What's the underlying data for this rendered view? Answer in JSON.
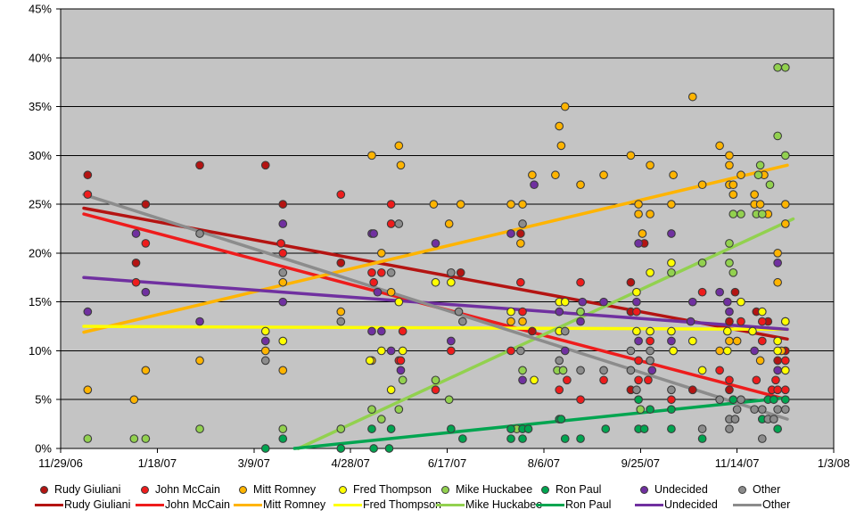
{
  "chart_data": {
    "type": "scatter",
    "title": "",
    "plot_bg": "#C4C4C4",
    "grid": "horizontal",
    "legend_position": "bottom",
    "x_axis": {
      "tick_labels": [
        "11/29/06",
        "1/18/07",
        "3/9/07",
        "4/28/07",
        "6/17/07",
        "8/6/07",
        "9/25/07",
        "11/14/07",
        "1/3/08"
      ],
      "tick_interval_days": 50,
      "range_days": [
        0,
        400
      ]
    },
    "y_axis": {
      "ticks": [
        0,
        5,
        10,
        15,
        20,
        25,
        30,
        35,
        40,
        45
      ],
      "unit": "%",
      "min": 0,
      "max": 45
    },
    "series": [
      {
        "name": "Rudy Giuliani",
        "color": "#B41412",
        "trend": [
          12,
          24.6,
          376,
          11.2
        ],
        "points": [
          [
            14,
            28
          ],
          [
            39,
            19
          ],
          [
            44,
            25
          ],
          [
            72,
            29
          ],
          [
            106,
            29
          ],
          [
            115,
            25
          ],
          [
            145,
            19
          ],
          [
            207,
            18
          ],
          [
            238,
            22
          ],
          [
            244,
            12
          ],
          [
            295,
            17
          ],
          [
            295,
            14
          ],
          [
            302,
            21
          ],
          [
            295,
            6
          ],
          [
            327,
            6
          ],
          [
            346,
            13
          ],
          [
            346,
            6
          ],
          [
            349,
            16
          ],
          [
            360,
            14
          ],
          [
            366,
            13
          ],
          [
            371,
            9
          ],
          [
            375,
            10
          ],
          [
            375,
            13
          ]
        ]
      },
      {
        "name": "John McCain",
        "color": "#EE1C1C",
        "trend": [
          12,
          24.0,
          376,
          5.0
        ],
        "points": [
          [
            14,
            26
          ],
          [
            39,
            17
          ],
          [
            44,
            21
          ],
          [
            114,
            21
          ],
          [
            115,
            20
          ],
          [
            145,
            26
          ],
          [
            161,
            18
          ],
          [
            162,
            17
          ],
          [
            166,
            18
          ],
          [
            171,
            25
          ],
          [
            171,
            23
          ],
          [
            175,
            9
          ],
          [
            176,
            9
          ],
          [
            177,
            12
          ],
          [
            194,
            6
          ],
          [
            202,
            10
          ],
          [
            233,
            10
          ],
          [
            238,
            17
          ],
          [
            239,
            14
          ],
          [
            258,
            6
          ],
          [
            262,
            7
          ],
          [
            269,
            17
          ],
          [
            269,
            5
          ],
          [
            281,
            7
          ],
          [
            298,
            14
          ],
          [
            299,
            9
          ],
          [
            299,
            7
          ],
          [
            304,
            7
          ],
          [
            305,
            11
          ],
          [
            316,
            5
          ],
          [
            332,
            16
          ],
          [
            341,
            8
          ],
          [
            346,
            7
          ],
          [
            352,
            13
          ],
          [
            360,
            7
          ],
          [
            363,
            13
          ],
          [
            363,
            11
          ],
          [
            368,
            6
          ],
          [
            370,
            7
          ],
          [
            371,
            6
          ],
          [
            375,
            6
          ],
          [
            375,
            9
          ]
        ]
      },
      {
        "name": "Mitt Romney",
        "color": "#FFB400",
        "trend": [
          12,
          11.9,
          376,
          29.0
        ],
        "points": [
          [
            14,
            6
          ],
          [
            38,
            5
          ],
          [
            44,
            8
          ],
          [
            72,
            9
          ],
          [
            106,
            10
          ],
          [
            115,
            8
          ],
          [
            115,
            17
          ],
          [
            145,
            14
          ],
          [
            161,
            9
          ],
          [
            161,
            30
          ],
          [
            166,
            20
          ],
          [
            171,
            16
          ],
          [
            175,
            31
          ],
          [
            176,
            29
          ],
          [
            193,
            25
          ],
          [
            201,
            23
          ],
          [
            207,
            25
          ],
          [
            233,
            13
          ],
          [
            233,
            25
          ],
          [
            238,
            21
          ],
          [
            239,
            13
          ],
          [
            239,
            25
          ],
          [
            244,
            28
          ],
          [
            256,
            28
          ],
          [
            258,
            33
          ],
          [
            259,
            31
          ],
          [
            261,
            35
          ],
          [
            269,
            27
          ],
          [
            281,
            28
          ],
          [
            295,
            30
          ],
          [
            299,
            24
          ],
          [
            299,
            25
          ],
          [
            301,
            22
          ],
          [
            305,
            24
          ],
          [
            305,
            29
          ],
          [
            316,
            25
          ],
          [
            317,
            10
          ],
          [
            317,
            28
          ],
          [
            327,
            36
          ],
          [
            332,
            27
          ],
          [
            341,
            10
          ],
          [
            341,
            31
          ],
          [
            346,
            11
          ],
          [
            346,
            27
          ],
          [
            346,
            29
          ],
          [
            346,
            30
          ],
          [
            348,
            26
          ],
          [
            348,
            27
          ],
          [
            350,
            11
          ],
          [
            352,
            28
          ],
          [
            359,
            25
          ],
          [
            359,
            26
          ],
          [
            362,
            9
          ],
          [
            362,
            25
          ],
          [
            364,
            28
          ],
          [
            366,
            24
          ],
          [
            371,
            17
          ],
          [
            371,
            20
          ],
          [
            373,
            10
          ],
          [
            375,
            23
          ],
          [
            375,
            25
          ]
        ]
      },
      {
        "name": "Fred Thompson",
        "color": "#FFFF00",
        "trend": [
          12,
          12.5,
          376,
          12.2
        ],
        "points": [
          [
            106,
            12
          ],
          [
            115,
            11
          ],
          [
            160,
            9
          ],
          [
            166,
            10
          ],
          [
            171,
            6
          ],
          [
            175,
            15
          ],
          [
            177,
            10
          ],
          [
            194,
            17
          ],
          [
            202,
            17
          ],
          [
            233,
            14
          ],
          [
            245,
            7
          ],
          [
            258,
            12
          ],
          [
            258,
            15
          ],
          [
            261,
            15
          ],
          [
            298,
            12
          ],
          [
            298,
            16
          ],
          [
            305,
            12
          ],
          [
            305,
            18
          ],
          [
            316,
            12
          ],
          [
            316,
            19
          ],
          [
            317,
            10
          ],
          [
            327,
            11
          ],
          [
            332,
            8
          ],
          [
            345,
            10
          ],
          [
            345,
            12
          ],
          [
            352,
            15
          ],
          [
            358,
            12
          ],
          [
            363,
            14
          ],
          [
            371,
            10
          ],
          [
            371,
            11
          ],
          [
            375,
            8
          ],
          [
            375,
            13
          ]
        ]
      },
      {
        "name": "Mike Huckabee",
        "color": "#92D14F",
        "trend": [
          123,
          0,
          379,
          23.5
        ],
        "points": [
          [
            14,
            1
          ],
          [
            38,
            1
          ],
          [
            44,
            1
          ],
          [
            72,
            2
          ],
          [
            115,
            2
          ],
          [
            145,
            2
          ],
          [
            161,
            4
          ],
          [
            166,
            3
          ],
          [
            175,
            4
          ],
          [
            177,
            7
          ],
          [
            194,
            7
          ],
          [
            201,
            5
          ],
          [
            236,
            2
          ],
          [
            239,
            8
          ],
          [
            257,
            8
          ],
          [
            260,
            8
          ],
          [
            269,
            14
          ],
          [
            300,
            4
          ],
          [
            316,
            18
          ],
          [
            332,
            19
          ],
          [
            346,
            19
          ],
          [
            346,
            21
          ],
          [
            348,
            18
          ],
          [
            348,
            24
          ],
          [
            352,
            24
          ],
          [
            360,
            24
          ],
          [
            361,
            28
          ],
          [
            362,
            29
          ],
          [
            363,
            24
          ],
          [
            367,
            27
          ],
          [
            371,
            32
          ],
          [
            371,
            39
          ],
          [
            375,
            30
          ],
          [
            375,
            39
          ]
        ]
      },
      {
        "name": "Ron Paul",
        "color": "#00A550",
        "trend": [
          121,
          0,
          376,
          5.2
        ],
        "points": [
          [
            106,
            0
          ],
          [
            115,
            1
          ],
          [
            145,
            0
          ],
          [
            161,
            2
          ],
          [
            162,
            0
          ],
          [
            170,
            0
          ],
          [
            171,
            2
          ],
          [
            202,
            2
          ],
          [
            208,
            1
          ],
          [
            233,
            1
          ],
          [
            233,
            2
          ],
          [
            239,
            1
          ],
          [
            239,
            2
          ],
          [
            242,
            2
          ],
          [
            258,
            3
          ],
          [
            259,
            3
          ],
          [
            261,
            1
          ],
          [
            269,
            1
          ],
          [
            282,
            2
          ],
          [
            299,
            2
          ],
          [
            299,
            5
          ],
          [
            302,
            2
          ],
          [
            305,
            4
          ],
          [
            316,
            2
          ],
          [
            316,
            4
          ],
          [
            332,
            1
          ],
          [
            348,
            5
          ],
          [
            363,
            3
          ],
          [
            366,
            5
          ],
          [
            369,
            5
          ],
          [
            371,
            2
          ],
          [
            375,
            5
          ]
        ]
      },
      {
        "name": "Undecided",
        "color": "#7030A0",
        "trend": [
          12,
          17.5,
          376,
          12.2
        ],
        "points": [
          [
            14,
            14
          ],
          [
            39,
            22
          ],
          [
            44,
            16
          ],
          [
            72,
            13
          ],
          [
            106,
            11
          ],
          [
            115,
            15
          ],
          [
            115,
            23
          ],
          [
            161,
            12
          ],
          [
            161,
            22
          ],
          [
            162,
            22
          ],
          [
            164,
            16
          ],
          [
            166,
            12
          ],
          [
            171,
            10
          ],
          [
            176,
            8
          ],
          [
            194,
            21
          ],
          [
            202,
            11
          ],
          [
            233,
            22
          ],
          [
            239,
            7
          ],
          [
            245,
            27
          ],
          [
            258,
            14
          ],
          [
            261,
            10
          ],
          [
            269,
            13
          ],
          [
            270,
            15
          ],
          [
            281,
            15
          ],
          [
            298,
            15
          ],
          [
            299,
            11
          ],
          [
            299,
            21
          ],
          [
            306,
            8
          ],
          [
            316,
            11
          ],
          [
            316,
            22
          ],
          [
            326,
            13
          ],
          [
            327,
            15
          ],
          [
            341,
            16
          ],
          [
            345,
            15
          ],
          [
            346,
            14
          ],
          [
            359,
            10
          ],
          [
            371,
            8
          ],
          [
            371,
            19
          ]
        ]
      },
      {
        "name": "Other",
        "color": "#8C8C8C",
        "trend": [
          12,
          26.0,
          376,
          3.0
        ],
        "points": [
          [
            72,
            22
          ],
          [
            106,
            9
          ],
          [
            115,
            18
          ],
          [
            145,
            13
          ],
          [
            171,
            18
          ],
          [
            175,
            23
          ],
          [
            202,
            18
          ],
          [
            206,
            14
          ],
          [
            208,
            13
          ],
          [
            238,
            10
          ],
          [
            239,
            23
          ],
          [
            258,
            9
          ],
          [
            261,
            12
          ],
          [
            269,
            8
          ],
          [
            281,
            8
          ],
          [
            295,
            8
          ],
          [
            295,
            10
          ],
          [
            298,
            6
          ],
          [
            305,
            9
          ],
          [
            305,
            10
          ],
          [
            316,
            6
          ],
          [
            332,
            2
          ],
          [
            341,
            5
          ],
          [
            346,
            2
          ],
          [
            346,
            3
          ],
          [
            349,
            3
          ],
          [
            350,
            4
          ],
          [
            352,
            5
          ],
          [
            359,
            4
          ],
          [
            363,
            1
          ],
          [
            363,
            4
          ],
          [
            366,
            3
          ],
          [
            369,
            3
          ],
          [
            371,
            4
          ],
          [
            375,
            4
          ]
        ]
      }
    ]
  }
}
